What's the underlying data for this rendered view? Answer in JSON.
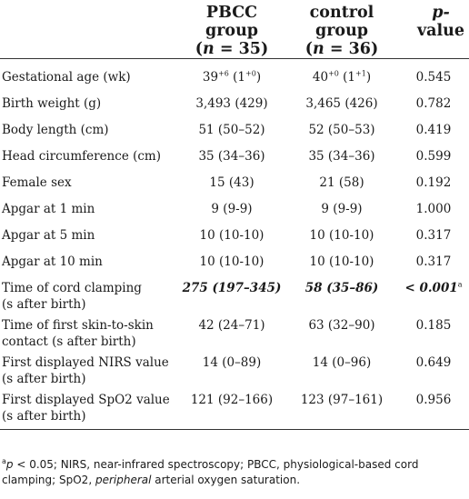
{
  "header": {
    "col1": "",
    "pbcc_line1": "PBCC group",
    "pbcc_open": "(",
    "pbcc_n": "n",
    "pbcc_eq": " = 35)",
    "ctrl_line1": "control group",
    "ctrl_open": "(",
    "ctrl_n": "n",
    "ctrl_eq": " = 36)",
    "p_line1": "p-",
    "p_line2": "value"
  },
  "rows": [
    {
      "label": "Gestational age (wk)",
      "pbcc_base": "39",
      "pbcc_sup": "+6",
      "pbcc_mid": " (1",
      "pbcc_sup2": "+0",
      "pbcc_end": ")",
      "ctrl_base": "40",
      "ctrl_sup": "+0",
      "ctrl_mid": " (1",
      "ctrl_sup2": "+1",
      "ctrl_end": ")",
      "p": "0.545"
    },
    {
      "label": "Birth weight (g)",
      "pbcc": "3,493 (429)",
      "ctrl": "3,465 (426)",
      "p": "0.782"
    },
    {
      "label": "Body length (cm)",
      "pbcc": "51 (50–52)",
      "ctrl": "52 (50–53)",
      "p": "0.419"
    },
    {
      "label": "Head circumference (cm)",
      "pbcc": "35 (34–36)",
      "ctrl": "35 (34–36)",
      "p": "0.599"
    },
    {
      "label": "Female sex",
      "pbcc": "15 (43)",
      "ctrl": "21 (58)",
      "p": "0.192"
    },
    {
      "label": "Apgar at 1 min",
      "pbcc": "9 (9-9)",
      "ctrl": "9 (9-9)",
      "p": "1.000"
    },
    {
      "label": "Apgar at 5 min",
      "pbcc": "10 (10-10)",
      "ctrl": "10 (10-10)",
      "p": "0.317"
    },
    {
      "label": "Apgar at 10 min",
      "pbcc": "10 (10-10)",
      "ctrl": "10 (10-10)",
      "p": "0.317"
    },
    {
      "label1": "Time of cord clamping",
      "label2": "(s after birth)",
      "pbcc": "275 (197–345)",
      "ctrl": "58 (35–86)",
      "p": "< 0.001",
      "p_sup": "a"
    },
    {
      "label1": "Time of first skin-to-skin",
      "label2": "contact (s after birth)",
      "pbcc": "42 (24–71)",
      "ctrl": "63 (32–90)",
      "p": "0.185"
    },
    {
      "label1": "First displayed NIRS value",
      "label2": "(s after birth)",
      "pbcc": "14 (0–89)",
      "ctrl": "14 (0–96)",
      "p": "0.649"
    },
    {
      "label1": "First displayed SpO2 value",
      "label2": "(s after birth)",
      "pbcc": "121 (92–166)",
      "ctrl": "123 (97–161)",
      "p": "0.956"
    }
  ],
  "footnote": {
    "sup": "a",
    "p_symbol": "p",
    "part1": " < 0.05; NIRS, near-infrared spectroscopy; PBCC, physiological-based cord clamping; SpO2, ",
    "italic": "peripheral",
    "part2": " arterial oxygen saturation."
  }
}
